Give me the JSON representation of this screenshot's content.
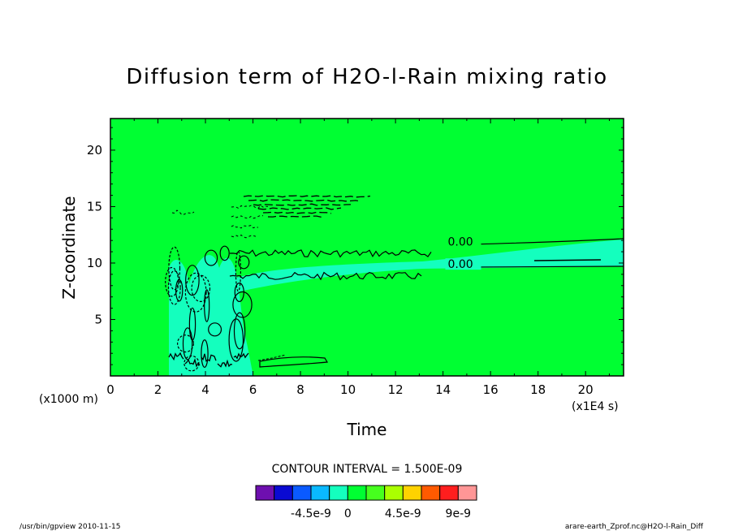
{
  "chart_data": {
    "type": "contour",
    "title": "Diffusion term of H2O-l-Rain mixing ratio",
    "xlabel": "Time",
    "ylabel": "Z-coordinate",
    "x_unit": "(x1E4 s)",
    "y_unit": "(x1000 m)",
    "xlim": [
      0,
      21.6
    ],
    "ylim": [
      0,
      22.8
    ],
    "x_ticks": [
      0,
      2,
      4,
      6,
      8,
      10,
      12,
      14,
      16,
      18,
      20
    ],
    "y_ticks": [
      5,
      10,
      15,
      20
    ],
    "contour_interval_label": "CONTOUR INTERVAL = 1.500E-09",
    "contour_labels": [
      {
        "text": "0.00",
        "x": 14.2,
        "y": 11.7
      },
      {
        "text": "0.00",
        "x": 14.2,
        "y": 9.7
      }
    ],
    "colorbar": {
      "colors": [
        "#6e0faf",
        "#0a0ad2",
        "#0a5aff",
        "#0ab9ff",
        "#14ffbe",
        "#00ff32",
        "#46ff1e",
        "#aaff00",
        "#ffd200",
        "#ff5a00",
        "#ff1e1e",
        "#ff9696"
      ],
      "tick_labels": [
        "-4.5e-9",
        "0",
        "4.5e-9",
        "9e-9"
      ]
    },
    "background_color": "#00ff32",
    "band_color": "#14ffbe"
  },
  "footer": {
    "left": "/usr/bin/gpview  2010-11-15",
    "right": "arare-earth_Zprof.nc@H2O-l-Rain_Diff"
  }
}
